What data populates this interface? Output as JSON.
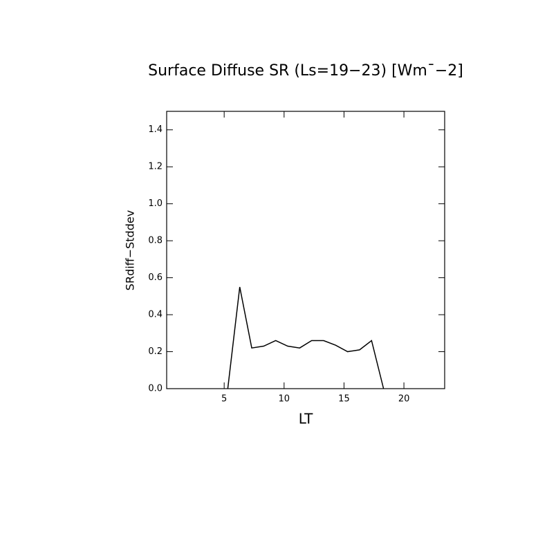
{
  "chart_data": {
    "type": "line",
    "title": "Surface Diffuse SR (Ls=19−23) [Wm¯−2]",
    "xlabel": "LT",
    "ylabel": "SRdiff−Stddev",
    "x": [
      5.3,
      6.3,
      7.3,
      8.3,
      9.3,
      10.3,
      11.3,
      12.3,
      13.3,
      14.3,
      15.3,
      16.3,
      17.3,
      18.3
    ],
    "series": [
      {
        "color": "#000000",
        "values": [
          0.0,
          0.55,
          0.22,
          0.23,
          0.26,
          0.23,
          0.22,
          0.26,
          0.26,
          0.235,
          0.2,
          0.21,
          0.26,
          0.0
        ]
      }
    ],
    "xlim": [
      0.2,
      23.4
    ],
    "xticks": [
      5,
      10,
      15,
      20
    ],
    "ylim": [
      0,
      1.5
    ],
    "yticks": [
      {
        "value": 0,
        "label": "0.0"
      },
      {
        "value": 0.2,
        "label": "0.2"
      },
      {
        "value": 0.4,
        "label": "0.4"
      },
      {
        "value": 0.6,
        "label": "0.6"
      },
      {
        "value": 0.8,
        "label": "0.8"
      },
      {
        "value": 1.0,
        "label": "1.0"
      },
      {
        "value": 1.2,
        "label": "1.2"
      },
      {
        "value": 1.4,
        "label": "1.4"
      }
    ]
  }
}
